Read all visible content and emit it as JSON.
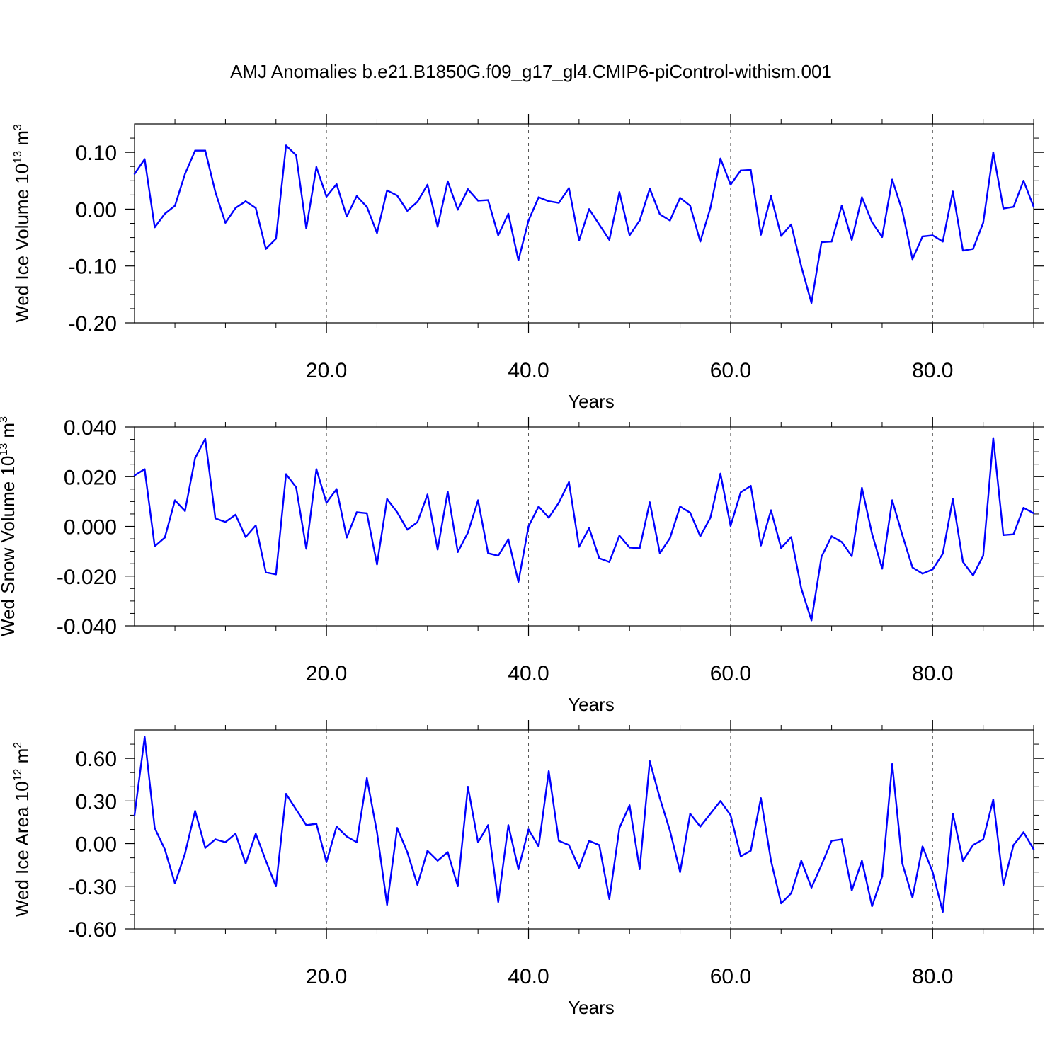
{
  "figure": {
    "title": "AMJ Anomalies b.e21.B1850G.f09_g17_gl4.CMIP6-piControl-withism.001",
    "line_color": "#0000ff",
    "grid_color": "#555555"
  },
  "chart_data": [
    {
      "type": "line",
      "xlabel": "Years",
      "ylabel_main": "Wed Ice Volume 10",
      "ylabel_exp": "13",
      "ylabel_unit": " m",
      "ylabel_unit_exp": "3",
      "xlim": [
        1,
        90
      ],
      "ylim": [
        -0.2,
        0.15
      ],
      "yticks": [
        -0.2,
        -0.1,
        0.0,
        0.1
      ],
      "ytick_labels": [
        "-0.20",
        "-0.10",
        "0.00",
        "0.10"
      ],
      "yminor": [
        -0.175,
        -0.15,
        -0.125,
        -0.075,
        -0.05,
        -0.025,
        0.025,
        0.05,
        0.075,
        0.125
      ],
      "xticks": [
        20,
        40,
        60,
        80
      ],
      "xtick_labels": [
        "20.0",
        "40.0",
        "60.0",
        "80.0"
      ],
      "xminor": [
        5,
        10,
        15,
        25,
        30,
        35,
        45,
        50,
        55,
        65,
        70,
        75,
        85,
        90
      ],
      "grid_x": [
        20,
        40,
        60,
        80
      ],
      "x": [
        1,
        2,
        3,
        4,
        5,
        6,
        7,
        8,
        9,
        10,
        11,
        12,
        13,
        14,
        15,
        16,
        17,
        18,
        19,
        20,
        21,
        22,
        23,
        24,
        25,
        26,
        27,
        28,
        29,
        30,
        31,
        32,
        33,
        34,
        35,
        36,
        37,
        38,
        39,
        40,
        41,
        42,
        43,
        44,
        45,
        46,
        47,
        48,
        49,
        50,
        51,
        52,
        53,
        54,
        55,
        56,
        57,
        58,
        59,
        60,
        61,
        62,
        63,
        64,
        65,
        66,
        67,
        68,
        69,
        70,
        71,
        72,
        73,
        74,
        75,
        76,
        77,
        78,
        79,
        80,
        81,
        82,
        83,
        84,
        85,
        86,
        87,
        88,
        89,
        90
      ],
      "values": [
        0.062,
        0.088,
        -0.032,
        -0.008,
        0.006,
        0.062,
        0.103,
        0.103,
        0.03,
        -0.024,
        0.002,
        0.014,
        0.002,
        -0.07,
        -0.052,
        0.112,
        0.095,
        -0.034,
        0.074,
        0.022,
        0.044,
        -0.013,
        0.023,
        0.004,
        -0.042,
        0.033,
        0.024,
        -0.003,
        0.013,
        0.043,
        -0.031,
        0.049,
        -0.001,
        0.035,
        0.015,
        0.016,
        -0.046,
        -0.008,
        -0.09,
        -0.02,
        0.021,
        0.014,
        0.011,
        0.037,
        -0.055,
        0.0,
        -0.027,
        -0.054,
        0.03,
        -0.046,
        -0.02,
        0.036,
        -0.009,
        -0.02,
        0.02,
        0.006,
        -0.057,
        0.002,
        0.089,
        0.043,
        0.068,
        0.069,
        -0.045,
        0.023,
        -0.047,
        -0.027,
        -0.101,
        -0.165,
        -0.058,
        -0.057,
        0.006,
        -0.054,
        0.021,
        -0.023,
        -0.049,
        0.052,
        -0.003,
        -0.088,
        -0.048,
        -0.046,
        -0.057,
        0.031,
        -0.073,
        -0.07,
        -0.024,
        0.1,
        0.001,
        0.004,
        0.05,
        0.004
      ]
    },
    {
      "type": "line",
      "xlabel": "Years",
      "ylabel_main": "Wed Snow Volume 10",
      "ylabel_exp": "13",
      "ylabel_unit": " m",
      "ylabel_unit_exp": "3",
      "xlim": [
        1,
        90
      ],
      "ylim": [
        -0.04,
        0.04
      ],
      "yticks": [
        -0.04,
        -0.02,
        0.0,
        0.02,
        0.04
      ],
      "ytick_labels": [
        "-0.040",
        "-0.020",
        "0.000",
        "0.020",
        "0.040"
      ],
      "yminor": [
        -0.035,
        -0.03,
        -0.025,
        -0.015,
        -0.01,
        -0.005,
        0.005,
        0.01,
        0.015,
        0.025,
        0.03,
        0.035
      ],
      "xticks": [
        20,
        40,
        60,
        80
      ],
      "xtick_labels": [
        "20.0",
        "40.0",
        "60.0",
        "80.0"
      ],
      "xminor": [
        5,
        10,
        15,
        25,
        30,
        35,
        45,
        50,
        55,
        65,
        70,
        75,
        85,
        90
      ],
      "grid_x": [
        20,
        40,
        60,
        80
      ],
      "x": [
        1,
        2,
        3,
        4,
        5,
        6,
        7,
        8,
        9,
        10,
        11,
        12,
        13,
        14,
        15,
        16,
        17,
        18,
        19,
        20,
        21,
        22,
        23,
        24,
        25,
        26,
        27,
        28,
        29,
        30,
        31,
        32,
        33,
        34,
        35,
        36,
        37,
        38,
        39,
        40,
        41,
        42,
        43,
        44,
        45,
        46,
        47,
        48,
        49,
        50,
        51,
        52,
        53,
        54,
        55,
        56,
        57,
        58,
        59,
        60,
        61,
        62,
        63,
        64,
        65,
        66,
        67,
        68,
        69,
        70,
        71,
        72,
        73,
        74,
        75,
        76,
        77,
        78,
        79,
        80,
        81,
        82,
        83,
        84,
        85,
        86,
        87,
        88,
        89,
        90
      ],
      "values": [
        0.0205,
        0.023,
        -0.008,
        -0.0045,
        0.0105,
        0.0062,
        0.0275,
        0.0352,
        0.0032,
        0.0018,
        0.0047,
        -0.0043,
        0.0004,
        -0.0185,
        -0.0193,
        0.021,
        0.0157,
        -0.009,
        0.023,
        0.0095,
        0.015,
        -0.0045,
        0.0057,
        0.0053,
        -0.0153,
        0.011,
        0.0057,
        -0.0013,
        0.0017,
        0.0128,
        -0.0093,
        0.014,
        -0.0103,
        -0.0025,
        0.0105,
        -0.0108,
        -0.0118,
        -0.0052,
        -0.0223,
        0.0,
        0.008,
        0.0035,
        0.0095,
        0.0178,
        -0.0082,
        -0.0007,
        -0.0128,
        -0.0143,
        -0.0037,
        -0.0085,
        -0.0088,
        0.0097,
        -0.0108,
        -0.0047,
        0.008,
        0.0055,
        -0.004,
        0.0035,
        0.0212,
        0.0002,
        0.0137,
        0.0163,
        -0.0077,
        0.0065,
        -0.0087,
        -0.0043,
        -0.025,
        -0.0378,
        -0.0122,
        -0.004,
        -0.0063,
        -0.012,
        0.0155,
        -0.003,
        -0.017,
        0.0105,
        -0.0035,
        -0.0165,
        -0.019,
        -0.0173,
        -0.011,
        0.011,
        -0.0143,
        -0.0197,
        -0.0118,
        0.0355,
        -0.0035,
        -0.0032,
        0.0075,
        0.0053
      ]
    },
    {
      "type": "line",
      "xlabel": "Years",
      "ylabel_main": "Wed Ice Area 10",
      "ylabel_exp": "12",
      "ylabel_unit": " m",
      "ylabel_unit_exp": "2",
      "xlim": [
        1,
        90
      ],
      "ylim": [
        -0.6,
        0.8
      ],
      "yticks": [
        -0.6,
        -0.3,
        0.0,
        0.3,
        0.6
      ],
      "ytick_labels": [
        "-0.60",
        "-0.30",
        "0.00",
        "0.30",
        "0.60"
      ],
      "yminor": [
        -0.5,
        -0.4,
        -0.2,
        -0.1,
        0.1,
        0.2,
        0.4,
        0.5,
        0.7
      ],
      "xticks": [
        20,
        40,
        60,
        80
      ],
      "xtick_labels": [
        "20.0",
        "40.0",
        "60.0",
        "80.0"
      ],
      "xminor": [
        5,
        10,
        15,
        25,
        30,
        35,
        45,
        50,
        55,
        65,
        70,
        75,
        85,
        90
      ],
      "grid_x": [
        20,
        40,
        60,
        80
      ],
      "x": [
        1,
        2,
        3,
        4,
        5,
        6,
        7,
        8,
        9,
        10,
        11,
        12,
        13,
        14,
        15,
        16,
        17,
        18,
        19,
        20,
        21,
        22,
        23,
        24,
        25,
        26,
        27,
        28,
        29,
        30,
        31,
        32,
        33,
        34,
        35,
        36,
        37,
        38,
        39,
        40,
        41,
        42,
        43,
        44,
        45,
        46,
        47,
        48,
        49,
        50,
        51,
        52,
        53,
        54,
        55,
        56,
        57,
        58,
        59,
        60,
        61,
        62,
        63,
        64,
        65,
        66,
        67,
        68,
        69,
        70,
        71,
        72,
        73,
        74,
        75,
        76,
        77,
        78,
        79,
        80,
        81,
        82,
        83,
        84,
        85,
        86,
        87,
        88,
        89,
        90
      ],
      "values": [
        0.2,
        0.75,
        0.11,
        -0.04,
        -0.28,
        -0.07,
        0.23,
        -0.03,
        0.03,
        0.01,
        0.07,
        -0.14,
        0.07,
        -0.12,
        -0.3,
        0.35,
        0.24,
        0.13,
        0.14,
        -0.13,
        0.12,
        0.05,
        0.01,
        0.46,
        0.08,
        -0.43,
        0.11,
        -0.06,
        -0.29,
        -0.05,
        -0.12,
        -0.06,
        -0.3,
        0.4,
        0.01,
        0.13,
        -0.41,
        0.13,
        -0.18,
        0.1,
        -0.02,
        0.51,
        0.02,
        -0.01,
        -0.17,
        0.02,
        -0.01,
        -0.39,
        0.11,
        0.27,
        -0.18,
        0.58,
        0.32,
        0.09,
        -0.2,
        0.21,
        0.12,
        0.21,
        0.3,
        0.2,
        -0.09,
        -0.05,
        0.32,
        -0.12,
        -0.42,
        -0.35,
        -0.12,
        -0.31,
        -0.15,
        0.02,
        0.03,
        -0.33,
        -0.12,
        -0.44,
        -0.23,
        0.56,
        -0.14,
        -0.38,
        -0.02,
        -0.2,
        -0.48,
        0.21,
        -0.12,
        -0.01,
        0.03,
        0.31,
        -0.29,
        -0.01,
        0.08,
        -0.04
      ]
    }
  ]
}
